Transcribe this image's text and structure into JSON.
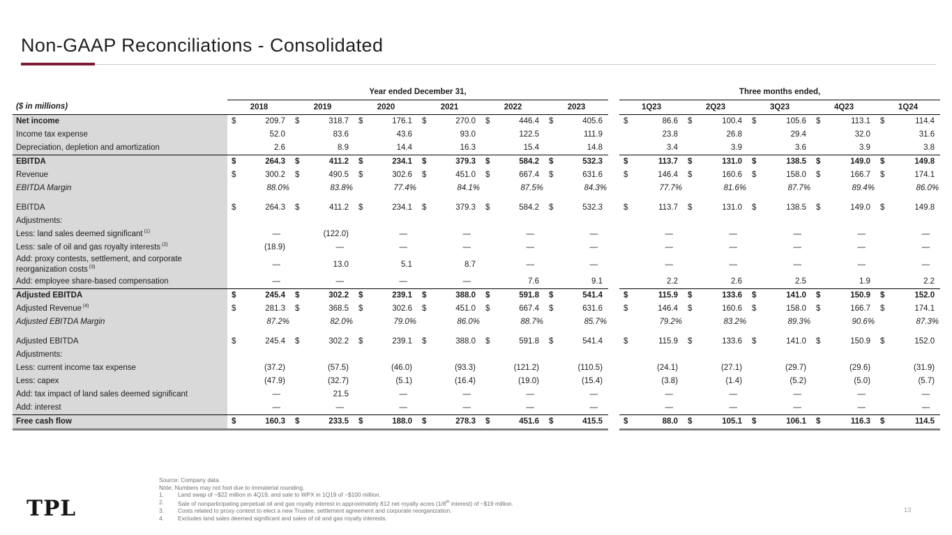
{
  "slide": {
    "title": "Non-GAAP Reconciliations - Consolidated",
    "page_number": "13",
    "logo_text": "TPL"
  },
  "colors": {
    "accent_maroon": "#7B1C34",
    "label_column_bg": "#D9D9D9",
    "section_border": "#000000",
    "total_underline": "#808080",
    "footnote_text": "#6F6F6F"
  },
  "table": {
    "units_label": "($ in millions)",
    "group_headers": {
      "years": "Year ended December 31,",
      "quarters": "Three months ended,"
    },
    "year_columns": [
      "2018",
      "2019",
      "2020",
      "2021",
      "2022",
      "2023"
    ],
    "quarter_columns": [
      "1Q23",
      "2Q23",
      "3Q23",
      "4Q23",
      "1Q24"
    ],
    "rows": [
      {
        "label": "Net income",
        "boldLabel": true,
        "dollar": true,
        "y": [
          "209.7",
          "318.7",
          "176.1",
          "270.0",
          "446.4",
          "405.6"
        ],
        "q": [
          "86.6",
          "100.4",
          "105.6",
          "113.1",
          "114.4"
        ]
      },
      {
        "label": "Income tax expense",
        "y": [
          "52.0",
          "83.6",
          "43.6",
          "93.0",
          "122.5",
          "111.9"
        ],
        "q": [
          "23.8",
          "26.8",
          "29.4",
          "32.0",
          "31.6"
        ]
      },
      {
        "label": "Depreciation, depletion and amortization",
        "y": [
          "2.6",
          "8.9",
          "14.4",
          "16.3",
          "15.4",
          "14.8"
        ],
        "q": [
          "3.4",
          "3.9",
          "3.6",
          "3.9",
          "3.8"
        ]
      },
      {
        "label": "EBITDA",
        "bold": true,
        "dollar": true,
        "top": true,
        "y": [
          "264.3",
          "411.2",
          "234.1",
          "379.3",
          "584.2",
          "532.3"
        ],
        "q": [
          "113.7",
          "131.0",
          "138.5",
          "149.0",
          "149.8"
        ]
      },
      {
        "label": "Revenue",
        "dollar": true,
        "y": [
          "300.2",
          "490.5",
          "302.6",
          "451.0",
          "667.4",
          "631.6"
        ],
        "q": [
          "146.4",
          "160.6",
          "158.0",
          "166.7",
          "174.1"
        ]
      },
      {
        "label": "EBITDA Margin",
        "italic": true,
        "y": [
          "88.0%",
          "83.8%",
          "77.4%",
          "84.1%",
          "87.5%",
          "84.3%"
        ],
        "q": [
          "77.7%",
          "81.6%",
          "87.7%",
          "89.4%",
          "86.0%"
        ]
      },
      {
        "spacer": true
      },
      {
        "label": "EBITDA",
        "dollar": true,
        "y": [
          "264.3",
          "411.2",
          "234.1",
          "379.3",
          "584.2",
          "532.3"
        ],
        "q": [
          "113.7",
          "131.0",
          "138.5",
          "149.0",
          "149.8"
        ]
      },
      {
        "label": "Adjustments:",
        "y": [
          "",
          "",
          "",
          "",
          "",
          ""
        ],
        "q": [
          "",
          "",
          "",
          "",
          ""
        ]
      },
      {
        "label": "Less: land sales deemed significant",
        "sup": "(1)",
        "y": [
          "—",
          "(122.0)",
          "—",
          "—",
          "—",
          "—"
        ],
        "q": [
          "—",
          "—",
          "—",
          "—",
          "—"
        ]
      },
      {
        "label": "Less: sale of oil and gas royalty interests",
        "sup": "(2)",
        "y": [
          "(18.9)",
          "—",
          "—",
          "—",
          "—",
          "—"
        ],
        "q": [
          "—",
          "—",
          "—",
          "—",
          "—"
        ]
      },
      {
        "label": "Add: proxy contests, settlement, and corporate reorganization costs",
        "sup": "(3)",
        "y": [
          "—",
          "13.0",
          "5.1",
          "8.7",
          "—",
          "—"
        ],
        "q": [
          "—",
          "—",
          "—",
          "—",
          "—"
        ]
      },
      {
        "label": "Add: employee share-based compensation",
        "y": [
          "—",
          "—",
          "—",
          "—",
          "7.6",
          "9.1"
        ],
        "q": [
          "2.2",
          "2.6",
          "2.5",
          "1.9",
          "2.2"
        ]
      },
      {
        "label": "Adjusted EBITDA",
        "bold": true,
        "dollar": true,
        "top": true,
        "y": [
          "245.4",
          "302.2",
          "239.1",
          "388.0",
          "591.8",
          "541.4"
        ],
        "q": [
          "115.9",
          "133.6",
          "141.0",
          "150.9",
          "152.0"
        ]
      },
      {
        "label": "Adjusted Revenue",
        "sup": "(4)",
        "dollar": true,
        "y": [
          "281.3",
          "368.5",
          "302.6",
          "451.0",
          "667.4",
          "631.6"
        ],
        "q": [
          "146.4",
          "160.6",
          "158.0",
          "166.7",
          "174.1"
        ]
      },
      {
        "label": "Adjusted EBITDA Margin",
        "italic": true,
        "y": [
          "87.2%",
          "82.0%",
          "79.0%",
          "86.0%",
          "88.7%",
          "85.7%"
        ],
        "q": [
          "79.2%",
          "83.2%",
          "89.3%",
          "90.6%",
          "87.3%"
        ]
      },
      {
        "spacer": true
      },
      {
        "label": "Adjusted EBITDA",
        "dollar": true,
        "y": [
          "245.4",
          "302.2",
          "239.1",
          "388.0",
          "591.8",
          "541.4"
        ],
        "q": [
          "115.9",
          "133.6",
          "141.0",
          "150.9",
          "152.0"
        ]
      },
      {
        "label": "Adjustments:",
        "y": [
          "",
          "",
          "",
          "",
          "",
          ""
        ],
        "q": [
          "",
          "",
          "",
          "",
          ""
        ]
      },
      {
        "label": "Less: current income tax expense",
        "y": [
          "(37.2)",
          "(57.5)",
          "(46.0)",
          "(93.3)",
          "(121.2)",
          "(110.5)"
        ],
        "q": [
          "(24.1)",
          "(27.1)",
          "(29.7)",
          "(29.6)",
          "(31.9)"
        ]
      },
      {
        "label": "Less: capex",
        "y": [
          "(47.9)",
          "(32.7)",
          "(5.1)",
          "(16.4)",
          "(19.0)",
          "(15.4)"
        ],
        "q": [
          "(3.8)",
          "(1.4)",
          "(5.2)",
          "(5.0)",
          "(5.7)"
        ]
      },
      {
        "label": "Add: tax impact of land sales deemed significant",
        "y": [
          "—",
          "21.5",
          "—",
          "—",
          "—",
          "—"
        ],
        "q": [
          "—",
          "—",
          "—",
          "—",
          "—"
        ]
      },
      {
        "label": "Add: interest",
        "y": [
          "—",
          "—",
          "—",
          "—",
          "—",
          "—"
        ],
        "q": [
          "—",
          "—",
          "—",
          "—",
          "—"
        ]
      },
      {
        "label": "Free cash flow",
        "bold": true,
        "dollar": true,
        "top": true,
        "thick": true,
        "y": [
          "160.3",
          "233.5",
          "188.0",
          "278.3",
          "451.6",
          "415.5"
        ],
        "q": [
          "88.0",
          "105.1",
          "106.1",
          "116.3",
          "114.5"
        ]
      }
    ]
  },
  "footnotes": {
    "source": "Source: Company data.",
    "note": "Note: Numbers may not foot due to immaterial rounding.",
    "items": [
      {
        "num": "1.",
        "text": "Land swap of ~$22 million in 4Q19, and sale to WPX in 1Q19 of ~$100 million."
      },
      {
        "num": "2.",
        "pre": "Sale of nonparticipating perpetual oil and gas royalty interest in approximately 812 net royalty acres (1/8",
        "sup": "th",
        "post": " interest) of ~$19 million."
      },
      {
        "num": "3.",
        "text": "Costs related to proxy contest to elect a new Trustee, settlement agreement and corporate reorganization."
      },
      {
        "num": "4.",
        "text": "Excludes land sales deemed significant and sales of oil and gas royalty interests."
      }
    ]
  }
}
